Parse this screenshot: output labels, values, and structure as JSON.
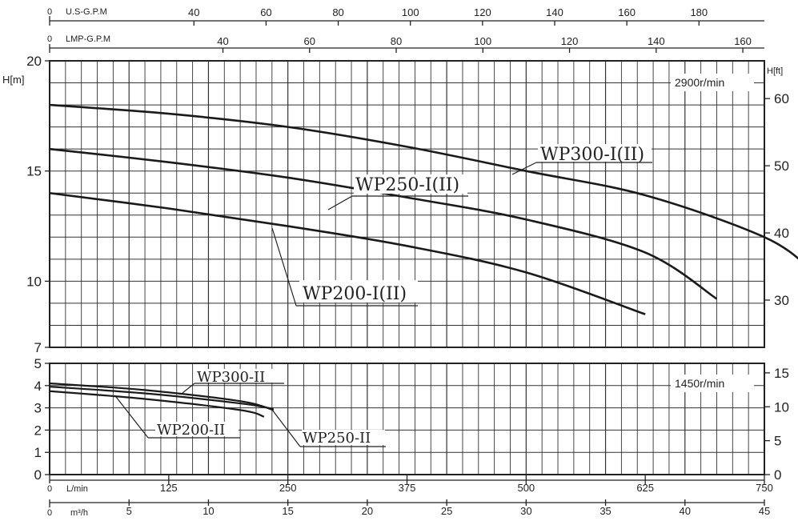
{
  "chart_data": [
    {
      "type": "line",
      "name": "2900r/min",
      "speed_label": "2900r/min",
      "ylabel_left": "H[m]",
      "ylabel_right": "H[ft]",
      "ylim": [
        7,
        20
      ],
      "yticks_left": [
        "20",
        "15",
        "10",
        "7"
      ],
      "ylim_ft": [
        22.97,
        65.62
      ],
      "yticks_right": [
        "60",
        "50",
        "40",
        "30"
      ],
      "xlim_lmin": [
        0,
        750
      ],
      "grid": true,
      "series": [
        {
          "name": "WP300-I(II)",
          "x": [
            0,
            125,
            250,
            375,
            500,
            625,
            750,
            800
          ],
          "y": [
            18.0,
            17.6,
            17.0,
            16.1,
            15.0,
            13.9,
            12.0,
            10.5
          ]
        },
        {
          "name": "WP250-I(II)",
          "x": [
            0,
            125,
            250,
            375,
            500,
            625,
            700
          ],
          "y": [
            16.0,
            15.4,
            14.7,
            13.8,
            12.8,
            11.3,
            9.2
          ]
        },
        {
          "name": "WP200-I(II)",
          "x": [
            0,
            125,
            250,
            375,
            500,
            625
          ],
          "y": [
            14.0,
            13.3,
            12.5,
            11.6,
            10.4,
            8.5
          ]
        }
      ]
    },
    {
      "type": "line",
      "name": "1450r/min",
      "speed_label": "1450r/min",
      "ylim": [
        0,
        5
      ],
      "yticks_left": [
        "5",
        "4",
        "3",
        "2",
        "1",
        "0"
      ],
      "yticks_right": [
        "15",
        "10",
        "5",
        "0"
      ],
      "xlim_lmin": [
        0,
        750
      ],
      "grid": true,
      "series": [
        {
          "name": "WP300-II",
          "x": [
            0,
            100,
            200,
            235
          ],
          "y": [
            4.1,
            3.8,
            3.3,
            2.9
          ]
        },
        {
          "name": "WP250-II",
          "x": [
            0,
            100,
            200,
            235
          ],
          "y": [
            3.95,
            3.65,
            3.2,
            2.95
          ]
        },
        {
          "name": "WP200-II",
          "x": [
            0,
            100,
            200,
            225
          ],
          "y": [
            3.75,
            3.4,
            2.9,
            2.6
          ]
        }
      ]
    }
  ],
  "axes": {
    "usgpm": {
      "label": "U.S-G.P.M",
      "first": "0",
      "ticks": [
        "40",
        "60",
        "80",
        "100",
        "120",
        "140",
        "160",
        "180"
      ]
    },
    "impgpm": {
      "label": "LMP-G.P.M",
      "first": "0",
      "ticks": [
        "40",
        "60",
        "80",
        "100",
        "120",
        "140",
        "160"
      ]
    },
    "lmin": {
      "label": "L/min",
      "first": "0",
      "ticks": [
        "125",
        "250",
        "375",
        "500",
        "625",
        "750"
      ]
    },
    "m3h": {
      "label": "m³/h",
      "first": "0",
      "ticks": [
        "5",
        "10",
        "15",
        "20",
        "25",
        "30",
        "35",
        "40",
        "45"
      ]
    }
  }
}
